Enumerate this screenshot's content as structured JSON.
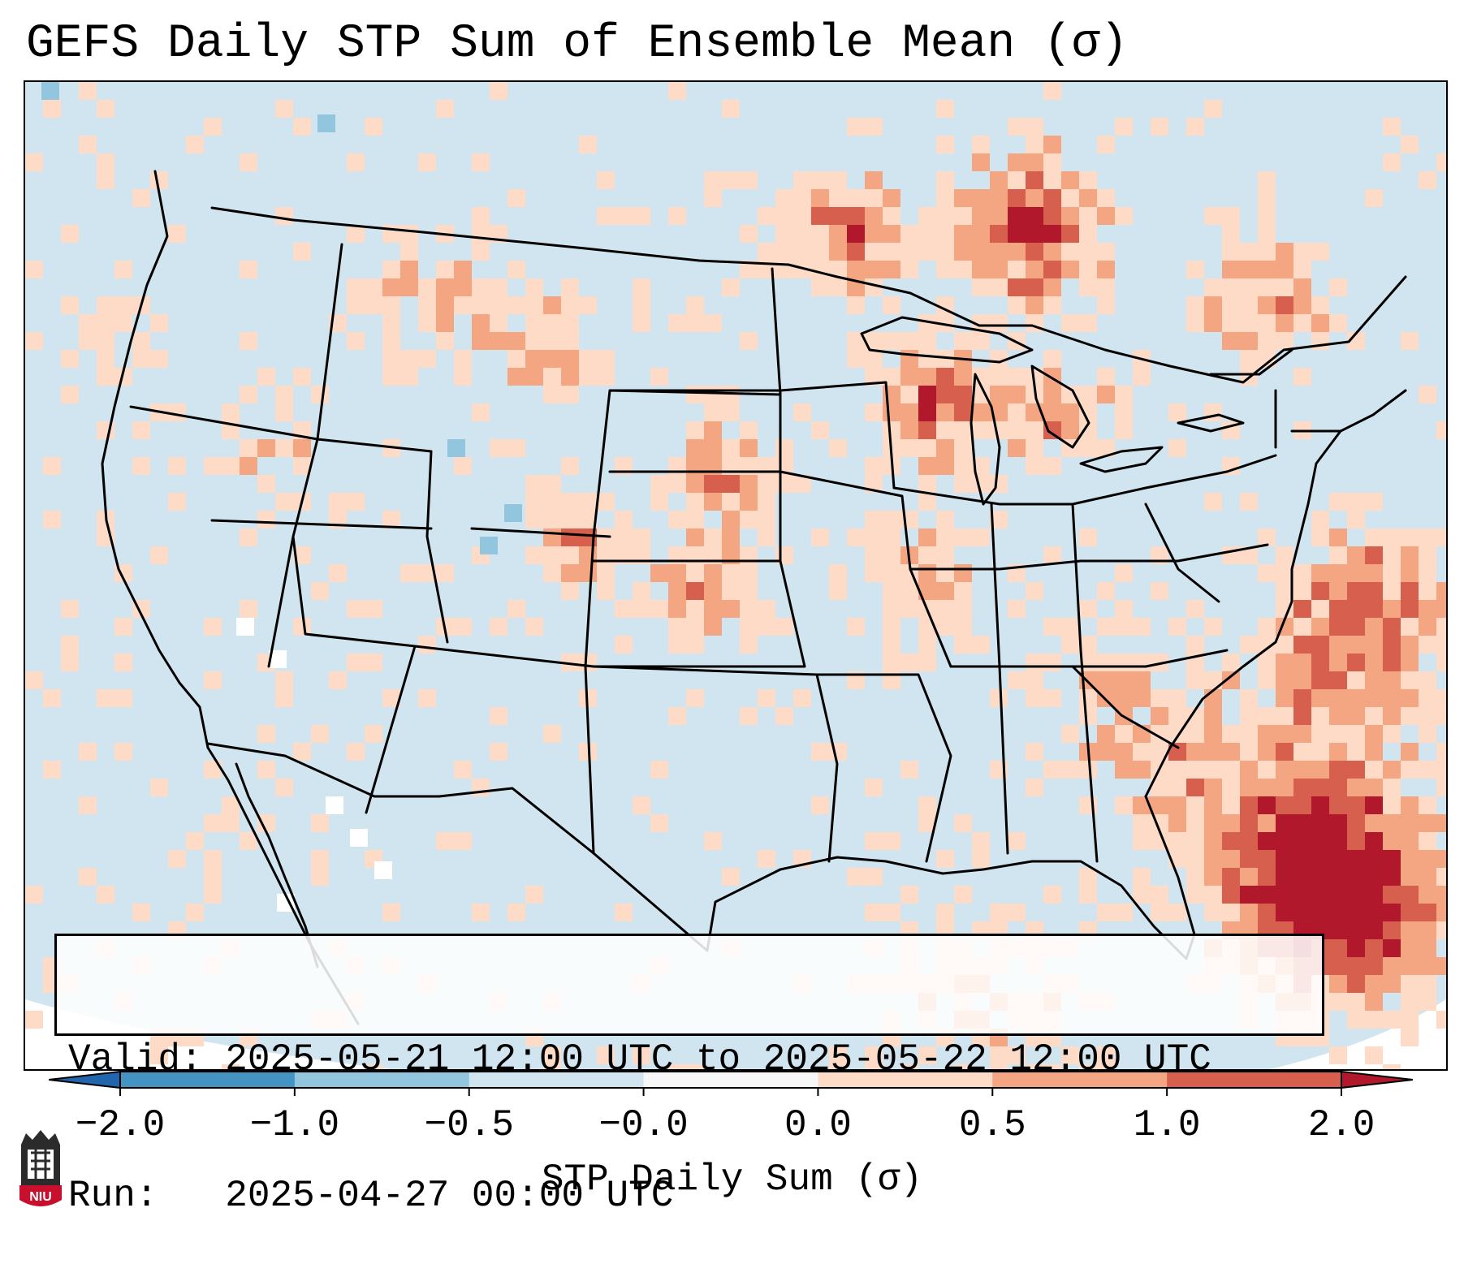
{
  "title": "GEFS Daily STP Sum of Ensemble Mean (σ)",
  "info": {
    "valid_label": "Valid:",
    "valid_value": "2025-05-21 12:00 UTC to 2025-05-22 12:00 UTC",
    "run_label": "Run:",
    "run_value": "2025-04-27 00:00 UTC"
  },
  "colorbar": {
    "label": "STP Daily Sum (σ)",
    "ticks": [
      "−2.0",
      "−1.0",
      "−0.5",
      "−0.0",
      "0.0",
      "0.5",
      "1.0",
      "2.0"
    ],
    "bins": [
      {
        "from": -2.0,
        "to": -1.0,
        "color": "#4393c3"
      },
      {
        "from": -1.0,
        "to": -0.5,
        "color": "#92c5de"
      },
      {
        "from": -0.5,
        "to": -0.0,
        "color": "#d1e5f0"
      },
      {
        "from": -0.0,
        "to": 0.0,
        "color": "#f7f7f7"
      },
      {
        "from": 0.0,
        "to": 0.5,
        "color": "#fddbc7"
      },
      {
        "from": 0.5,
        "to": 1.0,
        "color": "#f4a582"
      },
      {
        "from": 1.0,
        "to": 2.0,
        "color": "#d6604d"
      }
    ],
    "extend_low_color": "#2166ac",
    "extend_high_color": "#b2182b"
  },
  "map": {
    "background_color": "#d1e5f0",
    "hotspot_regions": [
      "Great Lakes",
      "Upper Midwest",
      "Central Plains",
      "Northern Plains",
      "Southeast coast",
      "Atlantic offshore",
      "Ontario"
    ]
  },
  "logo": {
    "text": "NIU",
    "color": "#c8102e"
  }
}
